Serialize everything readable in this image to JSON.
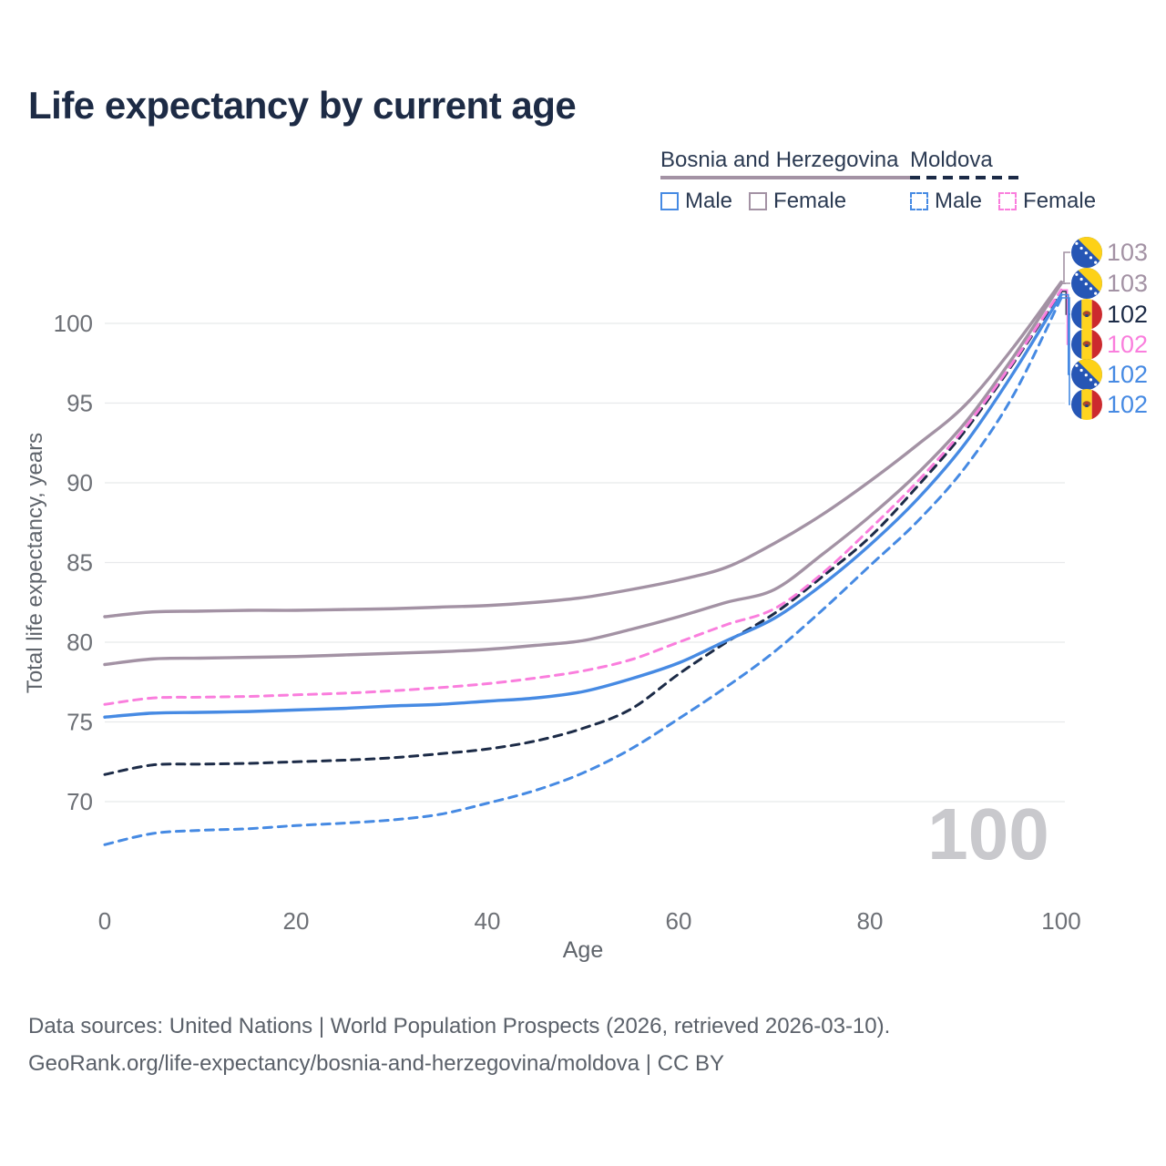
{
  "title": "Life expectancy by current age",
  "legend": {
    "bosnia": {
      "label": "Bosnia and Herzegovina",
      "male": "Male",
      "female": "Female"
    },
    "moldova": {
      "label": "Moldova",
      "male": "Male",
      "female": "Female"
    }
  },
  "colors": {
    "bosnia_line": "#a392a4",
    "moldova_line": "#1c2b47",
    "male_blue": "#468ae3",
    "female_bosnia": "#a392a4",
    "female_moldova": "#fa7edd",
    "grid": "#e8e9eb",
    "tick_text": "#6d7076",
    "axis_title_text": "#5f646b",
    "watermark": "#c9c9cd",
    "title_text": "#1d2b45"
  },
  "watermark_age": "100",
  "footer": {
    "line1": "Data sources: United Nations | World Population Prospects (2026, retrieved 2026-03-10).",
    "line2": "GeoRank.org/life-expectancy/bosnia-and-herzegovina/moldova | CC BY"
  },
  "chart_data": {
    "type": "line",
    "title": "Life expectancy by current age",
    "xlabel": "Age",
    "ylabel": "Total life expectancy, years",
    "xlim": [
      0,
      100
    ],
    "ylim": [
      66,
      104
    ],
    "x_ticks": [
      0,
      20,
      40,
      60,
      80,
      100
    ],
    "y_ticks": [
      70,
      75,
      80,
      85,
      90,
      95,
      100
    ],
    "grid": true,
    "legend_position": "top-right",
    "current_age_indicator": "100",
    "x": [
      0,
      5,
      10,
      15,
      20,
      25,
      30,
      35,
      40,
      45,
      50,
      55,
      60,
      65,
      70,
      75,
      80,
      85,
      90,
      95,
      100
    ],
    "series": [
      {
        "id": "bosnia-female",
        "name": "Bosnia and Herzegovina — Female",
        "country": "Bosnia and Herzegovina",
        "sex": "Female",
        "flag": "ba",
        "color": "#a392a4",
        "line_style": "solid",
        "end_label": "103",
        "values": [
          81.6,
          81.9,
          81.95,
          82.0,
          82.0,
          82.05,
          82.1,
          82.2,
          82.3,
          82.5,
          82.8,
          83.3,
          83.9,
          84.7,
          86.2,
          88.0,
          90.1,
          92.4,
          94.9,
          98.5,
          102.6
        ]
      },
      {
        "id": "bosnia-both",
        "name": "Bosnia and Herzegovina — Both sexes",
        "country": "Bosnia and Herzegovina",
        "sex": "Both",
        "flag": "ba",
        "color": "#a392a4",
        "line_style": "solid",
        "end_label": "103",
        "values": [
          78.6,
          78.95,
          79.0,
          79.05,
          79.1,
          79.2,
          79.3,
          79.4,
          79.55,
          79.8,
          80.1,
          80.8,
          81.6,
          82.5,
          83.3,
          85.5,
          87.9,
          90.6,
          93.8,
          97.9,
          102.5
        ]
      },
      {
        "id": "moldova-both",
        "name": "Moldova — Both sexes",
        "country": "Moldova",
        "sex": "Both",
        "flag": "md",
        "color": "#1c2b47",
        "line_style": "dashed",
        "end_label": "102",
        "values": [
          71.7,
          72.3,
          72.35,
          72.4,
          72.5,
          72.6,
          72.75,
          73.0,
          73.3,
          73.8,
          74.6,
          75.8,
          78.0,
          80.0,
          81.8,
          84.1,
          86.6,
          89.8,
          93.3,
          97.5,
          102.0
        ]
      },
      {
        "id": "moldova-female",
        "name": "Moldova — Female",
        "country": "Moldova",
        "sex": "Female",
        "flag": "md",
        "color": "#fa7edd",
        "line_style": "dashed",
        "end_label": "102",
        "values": [
          76.1,
          76.5,
          76.55,
          76.6,
          76.7,
          76.8,
          76.95,
          77.15,
          77.4,
          77.75,
          78.2,
          78.9,
          80.0,
          81.1,
          82.1,
          84.3,
          87.1,
          90.1,
          93.5,
          97.6,
          102.1
        ]
      },
      {
        "id": "bosnia-male",
        "name": "Bosnia and Herzegovina — Male",
        "country": "Bosnia and Herzegovina",
        "sex": "Male",
        "flag": "ba",
        "color": "#468ae3",
        "line_style": "solid",
        "end_label": "102",
        "values": [
          75.3,
          75.55,
          75.6,
          75.65,
          75.75,
          75.85,
          76.0,
          76.1,
          76.3,
          76.5,
          76.9,
          77.7,
          78.7,
          80.1,
          81.5,
          83.6,
          86.1,
          89.0,
          92.5,
          96.9,
          101.8
        ]
      },
      {
        "id": "moldova-male",
        "name": "Moldova — Male",
        "country": "Moldova",
        "sex": "Male",
        "flag": "md",
        "color": "#468ae3",
        "line_style": "dashed",
        "end_label": "102",
        "values": [
          67.3,
          68.0,
          68.2,
          68.3,
          68.5,
          68.65,
          68.85,
          69.2,
          69.9,
          70.7,
          71.8,
          73.3,
          75.2,
          77.2,
          79.4,
          82.0,
          84.8,
          87.6,
          91.0,
          95.5,
          101.6
        ]
      }
    ]
  }
}
